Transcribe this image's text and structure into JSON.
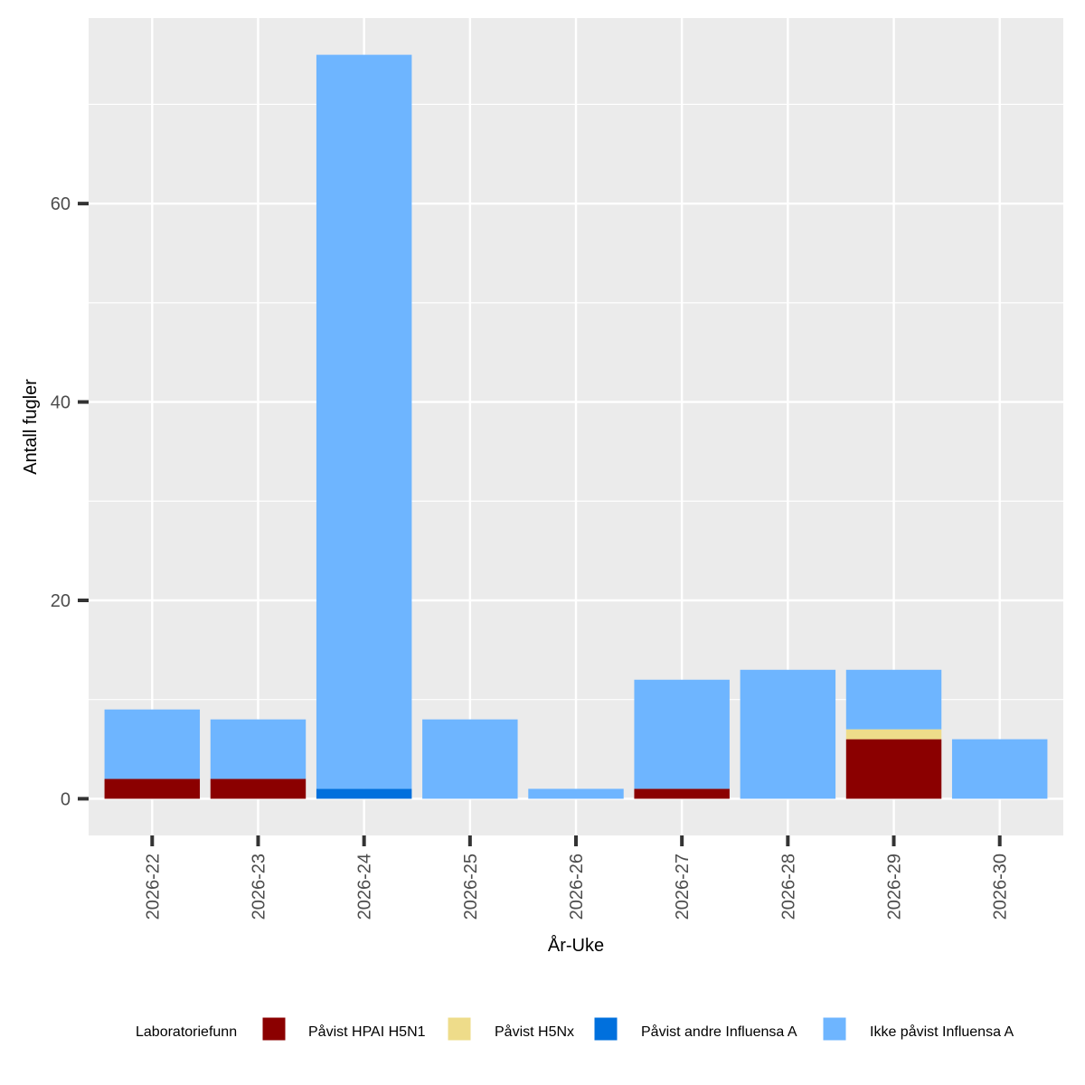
{
  "chart_data": {
    "type": "bar",
    "stacked": true,
    "xlabel": "År-Uke",
    "ylabel": "Antall fugler",
    "ylim": [
      -3.7,
      78.7
    ],
    "yticks": [
      0,
      20,
      40,
      60
    ],
    "grid": true,
    "background": "#ebebeb",
    "legend_position": "bottom",
    "legend_title": "Laboratoriefunn",
    "categories": [
      "2026-22",
      "2026-23",
      "2026-24",
      "2026-25",
      "2026-26",
      "2026-27",
      "2026-28",
      "2026-29",
      "2026-30"
    ],
    "series": [
      {
        "name": "Påvist HPAI H5N1",
        "color": "#8b0000",
        "values": [
          2,
          2,
          0,
          0,
          0,
          1,
          0,
          6,
          0
        ]
      },
      {
        "name": "Påvist H5Nx",
        "color": "#eedc8a",
        "values": [
          0,
          0,
          0,
          0,
          0,
          0,
          0,
          1,
          0
        ]
      },
      {
        "name": "Påvist andre Influensa A",
        "color": "#0070dd",
        "values": [
          0,
          0,
          1,
          0,
          0,
          0,
          0,
          0,
          0
        ]
      },
      {
        "name": "Ikke påvist Influensa A",
        "color": "#6eb5ff",
        "values": [
          7,
          6,
          74,
          8,
          1,
          11,
          13,
          6,
          6
        ]
      }
    ]
  }
}
